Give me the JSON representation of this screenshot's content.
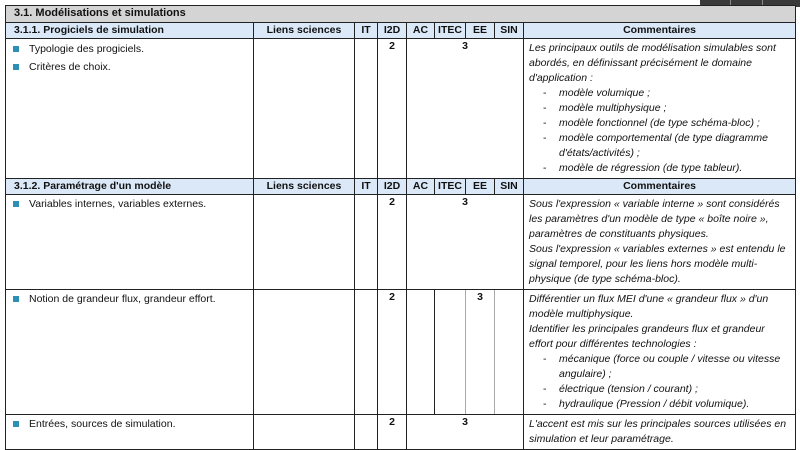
{
  "section_title": "3.1. Modélisations et simulations",
  "columns": {
    "liens": "Liens sciences",
    "it": "IT",
    "i2d": "I2D",
    "ac": "AC",
    "itec": "ITEC",
    "ee": "EE",
    "sin": "SIN",
    "commentaires": "Commentaires"
  },
  "colors": {
    "header_bg": "#dbe8f7",
    "title_bg": "#d4d4d4",
    "bullet": "#2e8fb5"
  },
  "sub1": {
    "title": "3.1.1.   Progiciels de simulation",
    "row": {
      "items": [
        "Typologie des progiciels.",
        "Critères de choix."
      ],
      "i2d": "2",
      "merged": "3",
      "comment": "Les principaux outils de modélisation simulables sont abordés, en définissant précisément le domaine d'application :",
      "list": [
        "modèle volumique ;",
        "modèle multiphysique ;",
        "modèle fonctionnel (de type schéma-bloc) ;",
        "modèle comportemental (de type diagramme d'états/activités) ;",
        "modèle de régression (de type tableur)."
      ]
    }
  },
  "sub2": {
    "title": "3.1.2.   Paramétrage d'un modèle",
    "rows": [
      {
        "item": "Variables internes, variables externes.",
        "i2d": "2",
        "merged": "3",
        "comment1": "Sous l'expression « variable interne » sont considérés les paramètres d'un modèle de type « boîte noire », paramètres de constituants physiques.",
        "comment2": "Sous l'expression « variables externes » est entendu le signal temporel, pour les liens hors modèle multi-physique (de type schéma-bloc)."
      },
      {
        "item": "Notion de grandeur flux, grandeur effort.",
        "i2d": "2",
        "ee": "3",
        "comment1": "Différentier un flux MEI d'une « grandeur flux » d'un modèle multiphysique.",
        "comment2": "Identifier les principales grandeurs flux et grandeur effort pour différentes technologies :",
        "list": [
          "mécanique (force ou couple / vitesse ou vitesse angulaire) ;",
          "électrique (tension / courant) ;",
          "hydraulique (Pression / débit volumique)."
        ]
      },
      {
        "item": "Entrées, sources de simulation.",
        "i2d": "2",
        "merged": "3",
        "comment1": "L'accent est mis sur les principales sources utilisées en simulation et leur paramétrage."
      }
    ]
  }
}
